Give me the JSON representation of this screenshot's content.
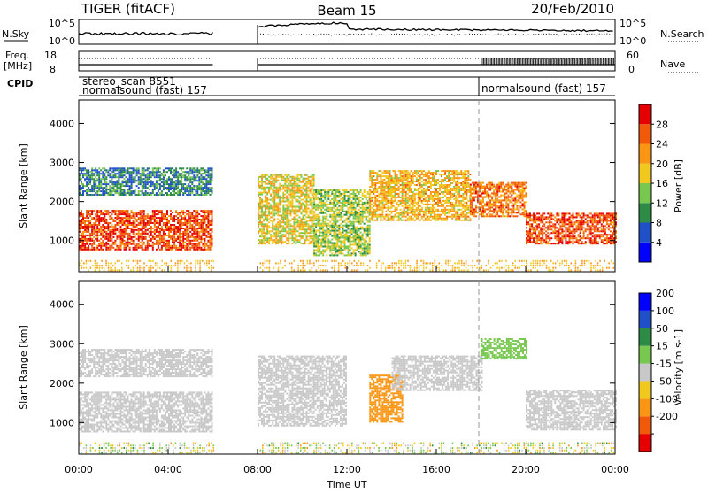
{
  "header": {
    "title": "TIGER (fitACF)",
    "beam": "Beam 15",
    "date": "20/Feb/2010"
  },
  "nsky_panel": {
    "left_label": "N.Sky",
    "right_label": "N.Search",
    "left_ticks": [
      "10^5",
      "10^0"
    ],
    "right_ticks": [
      "10^5",
      "10^0"
    ]
  },
  "freq_panel": {
    "left_label_line1": "Freq.",
    "left_label_line2": "[MHz]",
    "left_ticks": [
      "18",
      "8"
    ],
    "right_ticks": [
      "60",
      "0"
    ],
    "right_label": "Nave"
  },
  "cpid_panel": {
    "label": "CPID",
    "text1": "stereo_scan 8551",
    "text2": "normalsound (fast) 157",
    "text3": "normalsound (fast) 157"
  },
  "colors": {
    "power": [
      "#0000ff",
      "#2050c8",
      "#2c8c46",
      "#78c850",
      "#f0c81e",
      "#fa9614",
      "#f05a0a",
      "#e60000"
    ],
    "velocity": [
      "#e60000",
      "#f05a0a",
      "#fa9614",
      "#f0c81e",
      "#c8c8c8",
      "#78c850",
      "#2c8c46",
      "#2050c8",
      "#0000ff"
    ],
    "ground": "#c8c8c8"
  },
  "chart_data": [
    {
      "type": "heatmap",
      "name": "power",
      "ylabel": "Slant Range [km]",
      "ylim": [
        200,
        4600
      ],
      "y_ticks": [
        1000,
        2000,
        3000,
        4000
      ],
      "x_range": [
        0,
        24
      ],
      "colorbar_label": "Power [dB]",
      "colorbar_ticks": [
        4,
        8,
        12,
        16,
        20,
        24,
        28
      ],
      "colorbar_range": [
        0,
        32
      ],
      "data_gaps_hours": [
        [
          6,
          8
        ]
      ],
      "bands": [
        {
          "t": [
            0,
            6
          ],
          "r": [
            750,
            1750
          ],
          "level": 27
        },
        {
          "t": [
            0,
            6
          ],
          "r": [
            2150,
            2850
          ],
          "level": 9
        },
        {
          "t": [
            8,
            10.5
          ],
          "r": [
            900,
            2700
          ],
          "level": 18
        },
        {
          "t": [
            10.5,
            13
          ],
          "r": [
            600,
            2300
          ],
          "level": 15
        },
        {
          "t": [
            13,
            17.5
          ],
          "r": [
            1500,
            2800
          ],
          "level": 20
        },
        {
          "t": [
            17.5,
            20
          ],
          "r": [
            1600,
            2500
          ],
          "level": 24
        },
        {
          "t": [
            20,
            24
          ],
          "r": [
            900,
            1700
          ],
          "level": 27
        }
      ]
    },
    {
      "type": "heatmap",
      "name": "velocity",
      "ylabel": "Slant Range [km]",
      "ylim": [
        200,
        4600
      ],
      "y_ticks": [
        1000,
        2000,
        3000,
        4000
      ],
      "x_range": [
        0,
        24
      ],
      "x_ticks": [
        "00:00",
        "04:00",
        "08:00",
        "12:00",
        "16:00",
        "20:00",
        "00:00"
      ],
      "xlabel": "Time UT",
      "colorbar_label": "Velocity [m s-1]",
      "colorbar_ticks": [
        "200",
        "100",
        "50",
        "15",
        "-15",
        "-50",
        "-100",
        "-200"
      ],
      "data_gaps_hours": [
        [
          6,
          8
        ]
      ],
      "bands": [
        {
          "t": [
            0,
            6
          ],
          "r": [
            750,
            1750
          ],
          "level": 0
        },
        {
          "t": [
            0,
            6
          ],
          "r": [
            2150,
            2850
          ],
          "level": 0
        },
        {
          "t": [
            8,
            12
          ],
          "r": [
            900,
            2700
          ],
          "level": 0
        },
        {
          "t": [
            13,
            14.5
          ],
          "r": [
            1000,
            2200
          ],
          "level": -60
        },
        {
          "t": [
            14,
            18
          ],
          "r": [
            1800,
            2700
          ],
          "level": 0
        },
        {
          "t": [
            18,
            20
          ],
          "r": [
            2600,
            3100
          ],
          "level": 40
        },
        {
          "t": [
            20,
            24
          ],
          "r": [
            800,
            1800
          ],
          "level": 0
        }
      ]
    }
  ]
}
